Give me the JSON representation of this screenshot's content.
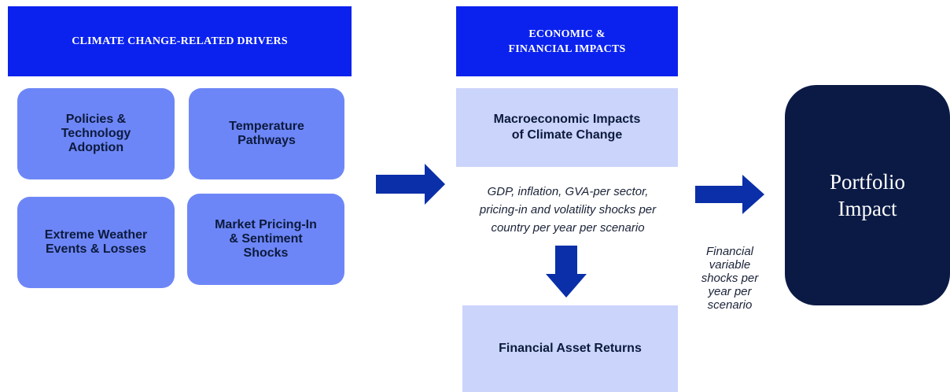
{
  "drivers": {
    "header": "CLIMATE CHANGE-RELATED DRIVERS",
    "items": [
      [
        "Policies &",
        "Technology",
        "Adoption"
      ],
      [
        "Temperature",
        "Pathways"
      ],
      [
        "Extreme Weather",
        "Events & Losses"
      ],
      [
        "Market Pricing-In",
        "& Sentiment",
        "Shocks"
      ]
    ]
  },
  "impacts": {
    "header": [
      "ECONOMIC &",
      "FINANCIAL IMPACTS"
    ],
    "macro": [
      "Macroeconomic Impacts",
      "of Climate Change"
    ],
    "macro_note": [
      "GDP, inflation, GVA-per sector,",
      "pricing-in and volatility shocks per",
      "country per year per scenario"
    ],
    "returns": "Financial Asset Returns"
  },
  "financial_note": [
    "Financial",
    "variable",
    "shocks per",
    "year per",
    "scenario"
  ],
  "portfolio": [
    "Portfolio",
    "Impact"
  ]
}
